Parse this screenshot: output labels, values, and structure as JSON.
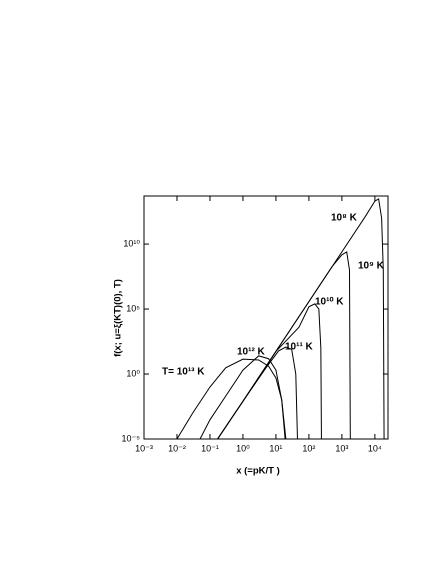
{
  "chart_data": {
    "type": "line",
    "x_label": "x  (=pK/T )",
    "y_label": "f(x; u=ξ(KT)(0), T)",
    "log_x": true,
    "log_y": true,
    "xlim": [
      0.001,
      25000
    ],
    "ylim": [
      1e-05,
      50000000000000.0
    ],
    "xticks": [
      {
        "value": 0.001,
        "label": "10⁻³"
      },
      {
        "value": 0.01,
        "label": "10⁻²"
      },
      {
        "value": 0.1,
        "label": "10⁻¹"
      },
      {
        "value": 1,
        "label": "10⁰"
      },
      {
        "value": 10,
        "label": "10¹"
      },
      {
        "value": 100,
        "label": "10²"
      },
      {
        "value": 1000,
        "label": "10³"
      },
      {
        "value": 10000,
        "label": "10⁴"
      }
    ],
    "yticks": [
      {
        "value": 1e-05,
        "label": "10⁻⁵"
      },
      {
        "value": 1,
        "label": "10⁰"
      },
      {
        "value": 100000,
        "label": "10⁵"
      },
      {
        "value": 10000000000,
        "label": "10¹⁰"
      }
    ],
    "series": [
      {
        "name": "T= 10¹³ K",
        "color": "#000000",
        "x": [
          0.01,
          0.03,
          0.1,
          0.3,
          1,
          3,
          6,
          10,
          15,
          20
        ],
        "values": [
          1e-05,
          0.001,
          0.1,
          3,
          14,
          12,
          4,
          0.5,
          0.01,
          1e-05
        ]
      },
      {
        "name": "10¹² K",
        "color": "#000000",
        "x": [
          0.05,
          0.1,
          0.3,
          1,
          3,
          6,
          10,
          15,
          19
        ],
        "values": [
          1e-05,
          0.0003,
          0.02,
          2,
          25,
          15,
          2,
          0.01,
          1e-05
        ]
      },
      {
        "name": "10¹¹ K",
        "color": "#000000",
        "x": [
          0.17,
          1,
          5,
          12,
          20,
          30,
          40,
          45
        ],
        "values": [
          1e-05,
          0.008,
          3,
          60,
          120,
          80,
          1,
          1e-05
        ]
      },
      {
        "name": "10¹⁰ K",
        "color": "#000000",
        "x": [
          0.17,
          1,
          10,
          50,
          100,
          150,
          200,
          230,
          240
        ],
        "values": [
          1e-05,
          0.008,
          55,
          4000,
          150000,
          250000,
          100000,
          100,
          1e-05
        ]
      },
      {
        "name": "10⁹ K",
        "color": "#000000",
        "x": [
          0.17,
          1,
          10,
          100,
          500,
          1000,
          1400,
          1700,
          1800
        ],
        "values": [
          1e-05,
          0.008,
          55,
          370000,
          180000000,
          1500000000,
          2500000000,
          100000000,
          1e-05
        ]
      },
      {
        "name": "10⁸ K",
        "color": "#000000",
        "x": [
          0.17,
          1,
          10,
          100,
          1000,
          5000,
          10000,
          13000,
          16000,
          18000,
          19000
        ],
        "values": [
          1e-05,
          0.008,
          55,
          370000,
          2500000000,
          1200000000000,
          20000000000000,
          30000000000000,
          1000000000000,
          100000000,
          1e-05
        ]
      }
    ]
  }
}
